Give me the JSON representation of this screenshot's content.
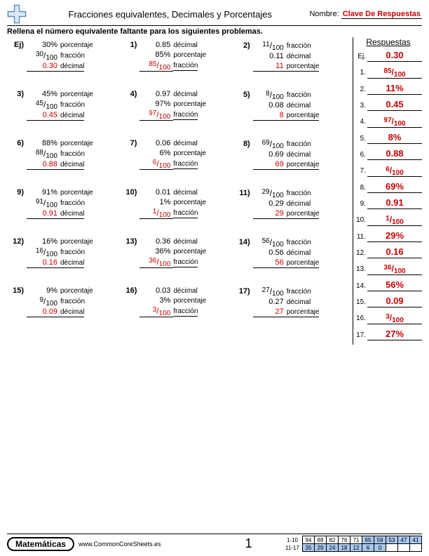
{
  "header": {
    "title": "Fracciones equivalentes, Decimales y Porcentajes",
    "name_label": "Nombre:",
    "answer_key": "Clave De Respuestas"
  },
  "instructions": "Rellena el número equivalente faltante para los siguientes problemas.",
  "answers_title": "Respuestas",
  "labels": {
    "porcentaje": "porcentaje",
    "fraccion": "fracción",
    "decimal": "décimal"
  },
  "problems": [
    {
      "n": "Ej)",
      "r": [
        {
          "v": "30%",
          "t": "porcentaje"
        },
        {
          "fn": "30",
          "fd": "100",
          "t": "fracción"
        },
        {
          "v": "0.30",
          "t": "décimal",
          "ans": true,
          "ul": true
        }
      ]
    },
    {
      "n": "1)",
      "r": [
        {
          "v": "0.85",
          "t": "décimal"
        },
        {
          "v": "85%",
          "t": "porcentaje"
        },
        {
          "fn": "85",
          "fd": "100",
          "t": "fracción",
          "ans": true,
          "ul": true
        }
      ]
    },
    {
      "n": "2)",
      "r": [
        {
          "fn": "11",
          "fd": "100",
          "t": "fracción"
        },
        {
          "v": "0.11",
          "t": "décimal"
        },
        {
          "v": "11",
          "t": "porcentaje",
          "ans": true,
          "ul": true
        }
      ]
    },
    {
      "n": "3)",
      "r": [
        {
          "v": "45%",
          "t": "porcentaje"
        },
        {
          "fn": "45",
          "fd": "100",
          "t": "fracción"
        },
        {
          "v": "0.45",
          "t": "décimal",
          "ans": true,
          "ul": true
        }
      ]
    },
    {
      "n": "4)",
      "r": [
        {
          "v": "0.97",
          "t": "décimal"
        },
        {
          "v": "97%",
          "t": "porcentaje"
        },
        {
          "fn": "97",
          "fd": "100",
          "t": "fracción",
          "ans": true,
          "ul": true
        }
      ]
    },
    {
      "n": "5)",
      "r": [
        {
          "fn": "8",
          "fd": "100",
          "t": "fracción"
        },
        {
          "v": "0.08",
          "t": "décimal"
        },
        {
          "v": "8",
          "t": "porcentaje",
          "ans": true,
          "ul": true
        }
      ]
    },
    {
      "n": "6)",
      "r": [
        {
          "v": "88%",
          "t": "porcentaje"
        },
        {
          "fn": "88",
          "fd": "100",
          "t": "fracción"
        },
        {
          "v": "0.88",
          "t": "décimal",
          "ans": true,
          "ul": true
        }
      ]
    },
    {
      "n": "7)",
      "r": [
        {
          "v": "0.06",
          "t": "décimal"
        },
        {
          "v": "6%",
          "t": "porcentaje"
        },
        {
          "fn": "6",
          "fd": "100",
          "t": "fracción",
          "ans": true,
          "ul": true
        }
      ]
    },
    {
      "n": "8)",
      "r": [
        {
          "fn": "69",
          "fd": "100",
          "t": "fracción"
        },
        {
          "v": "0.69",
          "t": "décimal"
        },
        {
          "v": "69",
          "t": "porcentaje",
          "ans": true,
          "ul": true
        }
      ]
    },
    {
      "n": "9)",
      "r": [
        {
          "v": "91%",
          "t": "porcentaje"
        },
        {
          "fn": "91",
          "fd": "100",
          "t": "fracción"
        },
        {
          "v": "0.91",
          "t": "décimal",
          "ans": true,
          "ul": true
        }
      ]
    },
    {
      "n": "10)",
      "r": [
        {
          "v": "0.01",
          "t": "décimal"
        },
        {
          "v": "1%",
          "t": "porcentaje"
        },
        {
          "fn": "1",
          "fd": "100",
          "t": "fracción",
          "ans": true,
          "ul": true
        }
      ]
    },
    {
      "n": "11)",
      "r": [
        {
          "fn": "29",
          "fd": "100",
          "t": "fracción"
        },
        {
          "v": "0.29",
          "t": "décimal"
        },
        {
          "v": "29",
          "t": "porcentaje",
          "ans": true,
          "ul": true
        }
      ]
    },
    {
      "n": "12)",
      "r": [
        {
          "v": "16%",
          "t": "porcentaje"
        },
        {
          "fn": "16",
          "fd": "100",
          "t": "fracción"
        },
        {
          "v": "0.16",
          "t": "décimal",
          "ans": true,
          "ul": true
        }
      ]
    },
    {
      "n": "13)",
      "r": [
        {
          "v": "0.36",
          "t": "décimal"
        },
        {
          "v": "36%",
          "t": "porcentaje"
        },
        {
          "fn": "36",
          "fd": "100",
          "t": "fracción",
          "ans": true,
          "ul": true
        }
      ]
    },
    {
      "n": "14)",
      "r": [
        {
          "fn": "56",
          "fd": "100",
          "t": "fracción"
        },
        {
          "v": "0.56",
          "t": "décimal"
        },
        {
          "v": "56",
          "t": "porcentaje",
          "ans": true,
          "ul": true
        }
      ]
    },
    {
      "n": "15)",
      "r": [
        {
          "v": "9%",
          "t": "porcentaje"
        },
        {
          "fn": "9",
          "fd": "100",
          "t": "fracción"
        },
        {
          "v": "0.09",
          "t": "décimal",
          "ans": true,
          "ul": true
        }
      ]
    },
    {
      "n": "16)",
      "r": [
        {
          "v": "0.03",
          "t": "décimal"
        },
        {
          "v": "3%",
          "t": "porcentaje"
        },
        {
          "fn": "3",
          "fd": "100",
          "t": "fracción",
          "ans": true,
          "ul": true
        }
      ]
    },
    {
      "n": "17)",
      "r": [
        {
          "fn": "27",
          "fd": "100",
          "t": "fracción"
        },
        {
          "v": "0.27",
          "t": "décimal"
        },
        {
          "v": "27",
          "t": "porcentaje",
          "ans": true,
          "ul": true
        }
      ]
    }
  ],
  "answers": [
    {
      "n": "Ej.",
      "v": "0.30",
      "type": "text"
    },
    {
      "n": "1.",
      "fn": "85",
      "fd": "100",
      "type": "frac"
    },
    {
      "n": "2.",
      "v": "11%",
      "type": "text"
    },
    {
      "n": "3.",
      "v": "0.45",
      "type": "text"
    },
    {
      "n": "4.",
      "fn": "97",
      "fd": "100",
      "type": "frac"
    },
    {
      "n": "5.",
      "v": "8%",
      "type": "text"
    },
    {
      "n": "6.",
      "v": "0.88",
      "type": "text"
    },
    {
      "n": "7.",
      "fn": "6",
      "fd": "100",
      "type": "frac"
    },
    {
      "n": "8.",
      "v": "69%",
      "type": "text"
    },
    {
      "n": "9.",
      "v": "0.91",
      "type": "text"
    },
    {
      "n": "10.",
      "fn": "1",
      "fd": "100",
      "type": "frac"
    },
    {
      "n": "11.",
      "v": "29%",
      "type": "text"
    },
    {
      "n": "12.",
      "v": "0.16",
      "type": "text"
    },
    {
      "n": "13.",
      "fn": "36",
      "fd": "100",
      "type": "frac"
    },
    {
      "n": "14.",
      "v": "56%",
      "type": "text"
    },
    {
      "n": "15.",
      "v": "0.09",
      "type": "text"
    },
    {
      "n": "16.",
      "fn": "3",
      "fd": "100",
      "type": "frac"
    },
    {
      "n": "17.",
      "v": "27%",
      "type": "text"
    }
  ],
  "footer": {
    "subject": "Matemáticas",
    "site": "www.CommonCoreSheets.es",
    "page": "1",
    "grid": {
      "row1_label": "1-10",
      "row2_label": "11-17",
      "row1": [
        "94",
        "88",
        "82",
        "76",
        "71",
        "65",
        "59",
        "53",
        "47",
        "41"
      ],
      "row2": [
        "35",
        "29",
        "24",
        "18",
        "12",
        "6",
        "0",
        "",
        "",
        ""
      ],
      "blue_from": 5
    }
  }
}
